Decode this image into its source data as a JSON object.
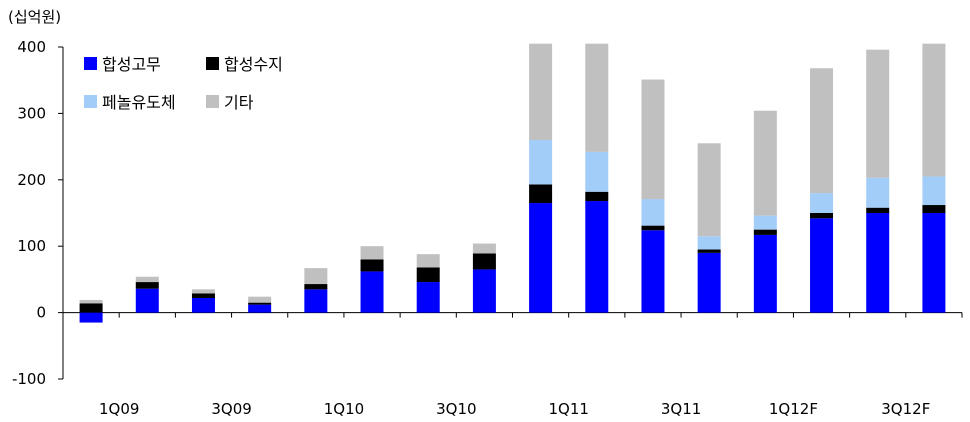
{
  "chart_data": {
    "type": "bar",
    "stacked": true,
    "unit_label": "(십억원)",
    "title": "",
    "xlabel": "",
    "ylabel": "",
    "ylim": [
      -100,
      400
    ],
    "yticks": [
      -100,
      0,
      100,
      200,
      300,
      400
    ],
    "categories": [
      "1Q09",
      "2Q09",
      "3Q09",
      "4Q09",
      "1Q10",
      "2Q10",
      "3Q10",
      "4Q10",
      "1Q11",
      "2Q11",
      "3Q11",
      "4Q11",
      "1Q12F",
      "2Q12F",
      "3Q12F",
      "4Q12F"
    ],
    "x_tick_labels": [
      "1Q09",
      "3Q09",
      "1Q10",
      "3Q10",
      "1Q11",
      "3Q11",
      "1Q12F",
      "3Q12F"
    ],
    "legend": {
      "position": "top-left",
      "rows": [
        [
          "합성고무",
          "합성수지"
        ],
        [
          "페놀유도체",
          "기타"
        ]
      ]
    },
    "series": [
      {
        "name": "합성고무",
        "color": "#0000ff",
        "values": [
          -15,
          36,
          22,
          12,
          35,
          62,
          46,
          65,
          165,
          168,
          124,
          90,
          117,
          142,
          150,
          150
        ]
      },
      {
        "name": "합성수지",
        "color": "#000000",
        "values": [
          14,
          10,
          7,
          3,
          8,
          18,
          22,
          24,
          28,
          14,
          7,
          5,
          8,
          8,
          8,
          12
        ]
      },
      {
        "name": "페놀유도체",
        "color": "#a3cdf9",
        "values": [
          0,
          0,
          0,
          0,
          0,
          0,
          0,
          0,
          67,
          60,
          40,
          20,
          21,
          30,
          45,
          43
        ]
      },
      {
        "name": "기타",
        "color": "#c0c0c0",
        "values": [
          5,
          8,
          6,
          9,
          24,
          20,
          20,
          15,
          145,
          163,
          180,
          140,
          158,
          188,
          193,
          200
        ]
      }
    ]
  }
}
